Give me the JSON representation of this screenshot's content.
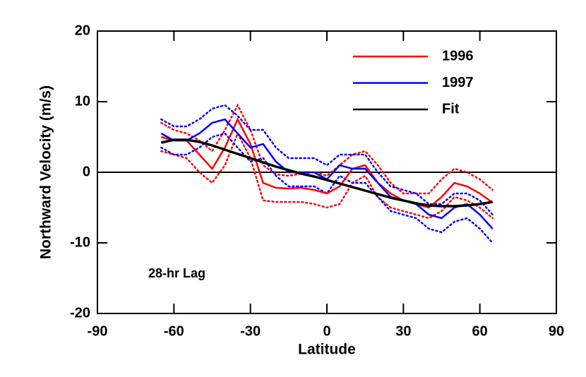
{
  "chart_data": {
    "type": "line",
    "xlabel": "Latitude",
    "ylabel": "Northward Velocity (m/s)",
    "annotation": "28-hr Lag",
    "xlim": [
      -90,
      90
    ],
    "xticks": [
      -90,
      -60,
      -30,
      0,
      30,
      60,
      90
    ],
    "ylim": [
      -20,
      20
    ],
    "yticks": [
      -20,
      -10,
      0,
      10,
      20
    ],
    "hline": 0,
    "x": [
      -65,
      -60,
      -55,
      -50,
      -45,
      -40,
      -35,
      -30,
      -25,
      -20,
      -15,
      -10,
      -5,
      0,
      5,
      10,
      15,
      20,
      25,
      30,
      35,
      40,
      45,
      50,
      55,
      60,
      65
    ],
    "series": [
      {
        "name": "1996",
        "color": "#ff0000",
        "values": [
          5,
          4.5,
          4.5,
          2.5,
          0.5,
          3.5,
          7.5,
          4,
          -1.5,
          -2.2,
          -2.3,
          -2.2,
          -2.5,
          -3,
          -2,
          0.5,
          1,
          -1.5,
          -3,
          -4,
          -4.5,
          -5,
          -3.5,
          -1.5,
          -2,
          -3,
          -4.3
        ],
        "upper": [
          7,
          6,
          5.5,
          4.5,
          3,
          6,
          9.5,
          6,
          1,
          -0.3,
          -0.5,
          -0.2,
          0,
          -0.5,
          1,
          2.5,
          3,
          1,
          -1.5,
          -3,
          -3,
          -3,
          -1,
          0.5,
          0,
          -1,
          -2.5
        ],
        "lower": [
          3,
          2.5,
          2,
          0,
          -1.5,
          1,
          5.5,
          2,
          -4,
          -4.2,
          -4.2,
          -4.2,
          -4.5,
          -5,
          -4.5,
          -1.5,
          -0.5,
          -3.5,
          -5,
          -5.5,
          -6,
          -6.5,
          -5.5,
          -3.5,
          -4,
          -5,
          -6.5
        ]
      },
      {
        "name": "1997",
        "color": "#0000ff",
        "values": [
          5.5,
          4.5,
          4.5,
          5.5,
          7,
          7.5,
          5.5,
          3.5,
          4,
          1.5,
          0,
          0,
          0,
          -1,
          1,
          0.5,
          0.5,
          -1.5,
          -3.5,
          -4,
          -4.5,
          -6,
          -6.5,
          -5,
          -4.5,
          -6,
          -8
        ],
        "upper": [
          7.5,
          6.5,
          6.5,
          7.5,
          9,
          9.5,
          8,
          6,
          6,
          3.5,
          2,
          2,
          2,
          1,
          2.5,
          2.5,
          2.5,
          0,
          -2,
          -2.5,
          -3,
          -4.5,
          -4.5,
          -3,
          -3,
          -4,
          -6
        ],
        "lower": [
          3.5,
          2.5,
          2.5,
          3.5,
          5,
          5.5,
          3.5,
          1.5,
          2,
          -0.5,
          -2,
          -2,
          -2,
          -3,
          -0.5,
          -1.5,
          -1.5,
          -3.5,
          -5.5,
          -6,
          -6.5,
          -8,
          -8.5,
          -7,
          -6.5,
          -8,
          -10
        ]
      },
      {
        "name": "Fit",
        "color": "#000000",
        "values": [
          4.2,
          4.6,
          4.6,
          4.3,
          3.8,
          3.2,
          2.6,
          2,
          1.4,
          0.8,
          0.3,
          -0.2,
          -0.6,
          -1.1,
          -1.6,
          -2.1,
          -2.6,
          -3.1,
          -3.6,
          -4,
          -4.4,
          -4.7,
          -4.8,
          -4.8,
          -4.7,
          -4.5,
          -4.2
        ]
      }
    ]
  }
}
